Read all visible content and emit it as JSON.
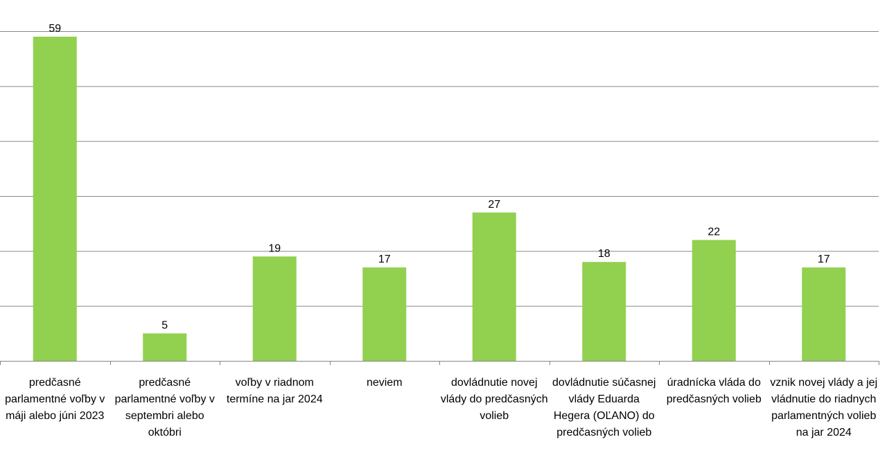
{
  "chart_data": {
    "type": "bar",
    "categories": [
      "predčasné parlamentné voľby v máji alebo júni 2023",
      "predčasné parlamentné voľby v septembri alebo októbri",
      "voľby v riadnom termíne na jar 2024",
      "neviem",
      "dovládnutie novej vlády do predčasných volieb",
      "dovládnutie súčasnej vlády Eduarda Hegera (OĽANO) do predčasných volieb",
      "úradnícka vláda do predčasných volieb",
      "vznik novej vlády a jej vládnutie do riadnych parlamentných volieb na jar 2024"
    ],
    "values": [
      59,
      5,
      19,
      17,
      27,
      18,
      22,
      17
    ],
    "ylim": [
      0,
      60
    ],
    "gridlines": [
      0,
      10,
      20,
      30,
      40,
      50,
      60
    ],
    "grid": true,
    "legend": "none",
    "bar_color": "#92D050",
    "grid_color": "#868686"
  }
}
